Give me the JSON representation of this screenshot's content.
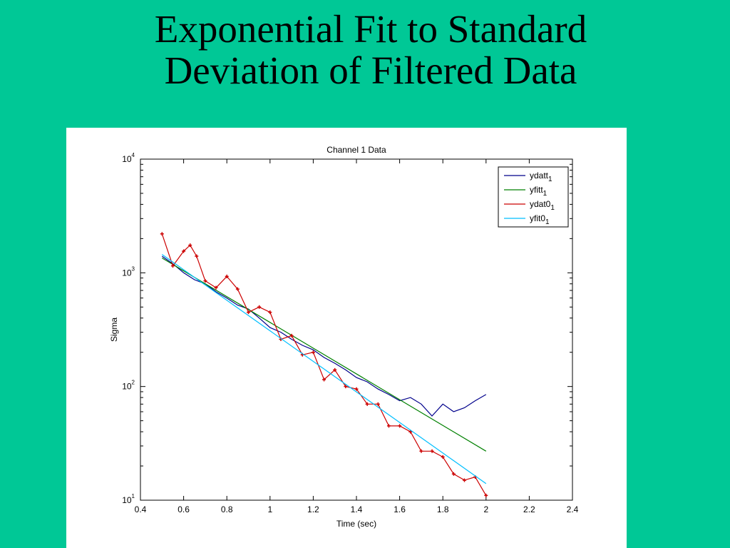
{
  "slide": {
    "title_line1": "Exponential Fit to Standard",
    "title_line2": "Deviation of Filtered Data"
  },
  "chart_data": {
    "type": "line",
    "title": "Channel 1 Data",
    "xlabel": "Time (sec)",
    "ylabel": "Sigma",
    "xlim": [
      0.4,
      2.4
    ],
    "ylim": [
      10,
      10000
    ],
    "yscale": "log",
    "grid": false,
    "legend_position": "top-right",
    "x_ticks": [
      0.4,
      0.6,
      0.8,
      1,
      1.2,
      1.4,
      1.6,
      1.8,
      2,
      2.2,
      2.4
    ],
    "x_tick_labels": [
      "0.4",
      "0.6",
      "0.8",
      "1",
      "1.2",
      "1.4",
      "1.6",
      "1.8",
      "2",
      "2.2",
      "2.4"
    ],
    "y_ticks": [
      10,
      100,
      1000,
      10000
    ],
    "y_tick_labels": [
      {
        "base": "10",
        "exp": "1"
      },
      {
        "base": "10",
        "exp": "2"
      },
      {
        "base": "10",
        "exp": "3"
      },
      {
        "base": "10",
        "exp": "4"
      }
    ],
    "series": [
      {
        "name": "ydatt",
        "subscript": "1",
        "color": "#00008b",
        "style": "line",
        "x": [
          0.5,
          0.55,
          0.6,
          0.65,
          0.7,
          0.75,
          0.8,
          0.85,
          0.9,
          0.95,
          1.0,
          1.05,
          1.1,
          1.15,
          1.2,
          1.25,
          1.3,
          1.35,
          1.4,
          1.45,
          1.5,
          1.55,
          1.6,
          1.65,
          1.7,
          1.75,
          1.8,
          1.85,
          1.9,
          1.95,
          2.0
        ],
        "y": [
          1400,
          1200,
          1000,
          870,
          800,
          680,
          600,
          520,
          480,
          400,
          330,
          300,
          260,
          230,
          210,
          180,
          160,
          140,
          120,
          110,
          95,
          85,
          75,
          80,
          70,
          55,
          70,
          60,
          65,
          75,
          85
        ]
      },
      {
        "name": "yfitt",
        "subscript": "1",
        "color": "#008000",
        "style": "line",
        "x": [
          0.5,
          2.0
        ],
        "y": [
          1350,
          27
        ]
      },
      {
        "name": "ydat0",
        "subscript": "1",
        "color": "#cc0000",
        "style": "marker-line",
        "x": [
          0.5,
          0.55,
          0.6,
          0.63,
          0.66,
          0.7,
          0.75,
          0.8,
          0.85,
          0.9,
          0.95,
          1.0,
          1.05,
          1.1,
          1.15,
          1.2,
          1.25,
          1.3,
          1.35,
          1.4,
          1.45,
          1.5,
          1.55,
          1.6,
          1.65,
          1.7,
          1.75,
          1.8,
          1.85,
          1.9,
          1.95,
          2.0
        ],
        "y": [
          2200,
          1150,
          1550,
          1750,
          1400,
          850,
          740,
          930,
          720,
          450,
          500,
          450,
          260,
          280,
          190,
          200,
          115,
          140,
          100,
          95,
          70,
          70,
          45,
          45,
          40,
          27,
          27,
          24,
          17,
          15,
          16,
          11
        ]
      },
      {
        "name": "yfit0",
        "subscript": "1",
        "color": "#00bfff",
        "style": "line",
        "x": [
          0.5,
          2.0
        ],
        "y": [
          1450,
          14
        ]
      }
    ]
  }
}
